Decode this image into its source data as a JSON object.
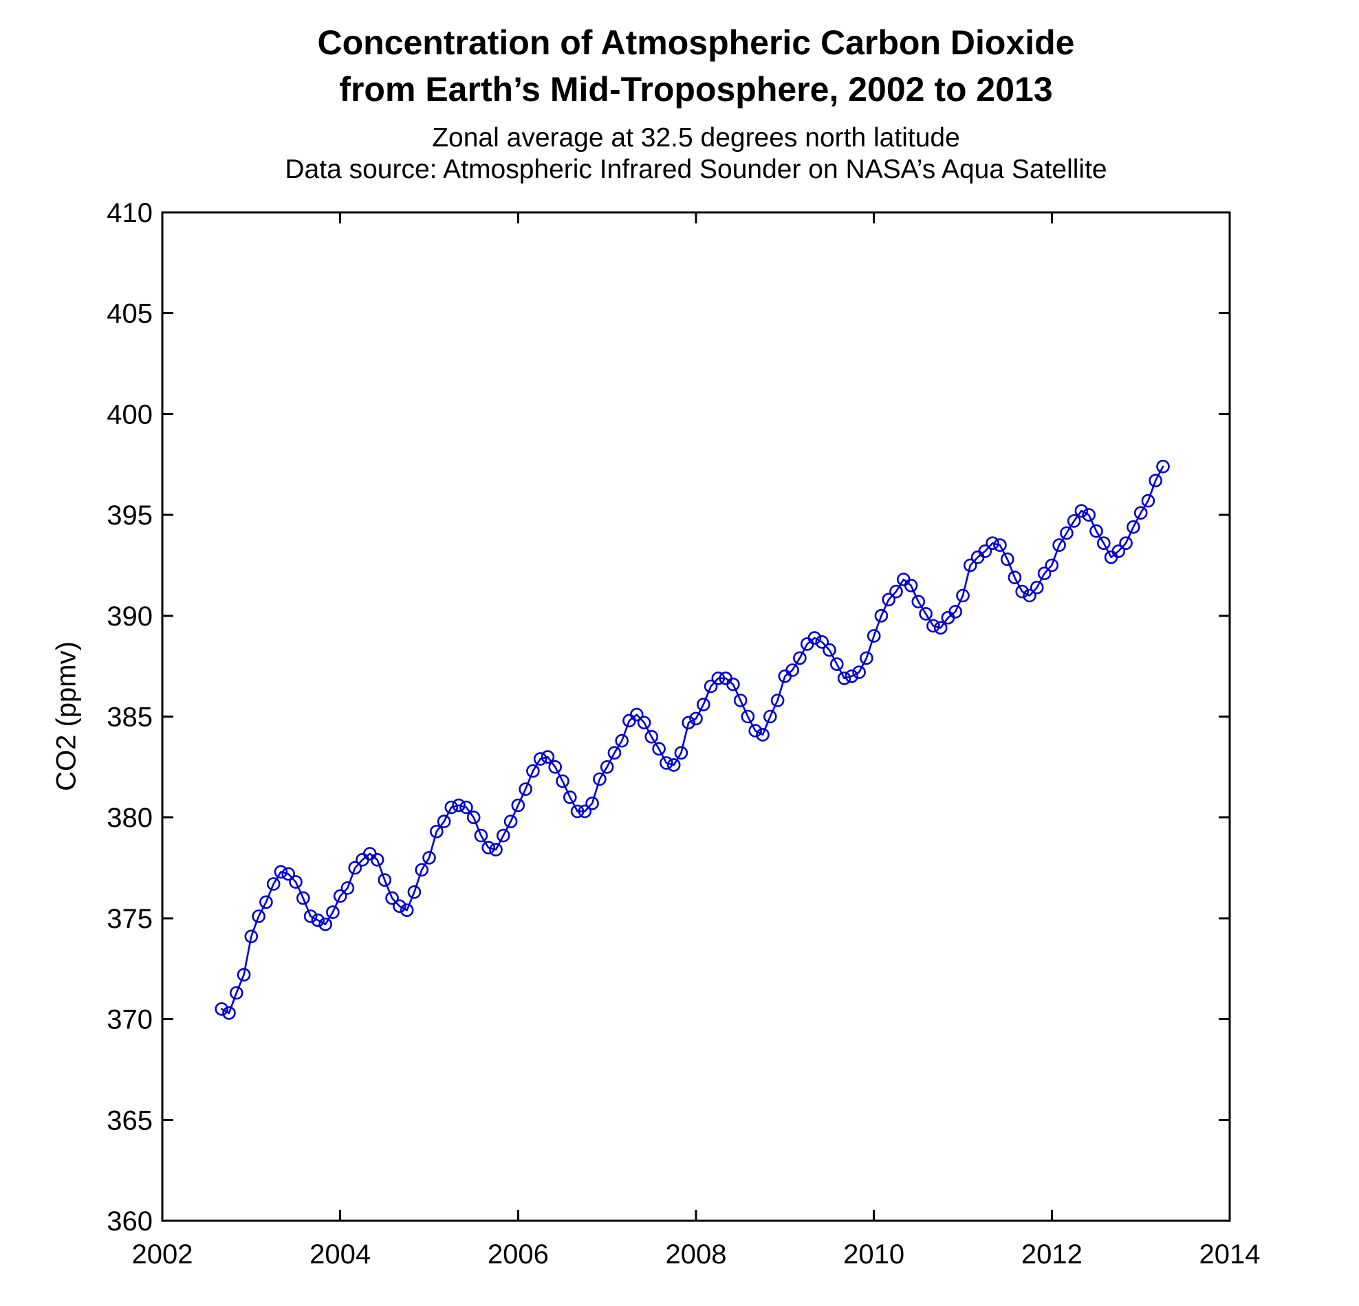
{
  "header": {
    "title_line1": "Concentration of Atmospheric Carbon Dioxide",
    "title_line2": "from Earth’s Mid-Troposphere, 2002 to 2013",
    "subtitle_line1": "Zonal average at 32.5 degrees north latitude",
    "subtitle_line2": "Data source: Atmospheric Infrared Sounder on NASA’s Aqua Satellite"
  },
  "chart_data": {
    "type": "line",
    "title": "Concentration of Atmospheric Carbon Dioxide from Earth’s Mid-Troposphere, 2002 to 2013",
    "subtitle": "Zonal average at 32.5 degrees north latitude. Data source: Atmospheric Infrared Sounder on NASA’s Aqua Satellite",
    "xlabel": "",
    "ylabel": "CO2 (ppmv)",
    "xlim": [
      2002,
      2014
    ],
    "ylim": [
      360,
      410
    ],
    "x_ticks": [
      2002,
      2004,
      2006,
      2008,
      2010,
      2012,
      2014
    ],
    "y_ticks": [
      360,
      365,
      370,
      375,
      380,
      385,
      390,
      395,
      400,
      405,
      410
    ],
    "grid": false,
    "legend": "none",
    "line_color": "#0000CC",
    "marker": "open-circle",
    "cadence": "monthly",
    "x_start": 2002.6667,
    "x_step": 0.083333,
    "x_start_label": "2002-09",
    "x_end_label": "2013-04",
    "values": [
      370.5,
      370.3,
      371.3,
      372.2,
      374.1,
      375.1,
      375.8,
      376.7,
      377.3,
      377.2,
      376.8,
      376.0,
      375.1,
      374.9,
      374.7,
      375.3,
      376.1,
      376.5,
      377.5,
      377.9,
      378.2,
      377.9,
      376.9,
      376.0,
      375.6,
      375.4,
      376.3,
      377.4,
      378.0,
      379.3,
      379.8,
      380.5,
      380.6,
      380.5,
      380.0,
      379.1,
      378.5,
      378.4,
      379.1,
      379.8,
      380.6,
      381.4,
      382.3,
      382.9,
      383.0,
      382.5,
      381.8,
      381.0,
      380.3,
      380.3,
      380.7,
      381.9,
      382.5,
      383.2,
      383.8,
      384.8,
      385.1,
      384.7,
      384.0,
      383.4,
      382.7,
      382.6,
      383.2,
      384.7,
      384.9,
      385.6,
      386.5,
      386.9,
      386.9,
      386.6,
      385.8,
      385.0,
      384.3,
      384.1,
      385.0,
      385.8,
      387.0,
      387.3,
      387.9,
      388.6,
      388.9,
      388.7,
      388.3,
      387.6,
      386.9,
      387.0,
      387.2,
      387.9,
      389.0,
      390.0,
      390.8,
      391.2,
      391.8,
      391.5,
      390.7,
      390.1,
      389.5,
      389.4,
      389.9,
      390.2,
      391.0,
      392.5,
      392.9,
      393.2,
      393.6,
      393.5,
      392.8,
      391.9,
      391.2,
      391.0,
      391.4,
      392.1,
      392.5,
      393.5,
      394.1,
      394.7,
      395.2,
      395.0,
      394.2,
      393.6,
      392.9,
      393.2,
      393.6,
      394.4,
      395.1,
      395.7,
      396.7,
      397.4
    ]
  }
}
